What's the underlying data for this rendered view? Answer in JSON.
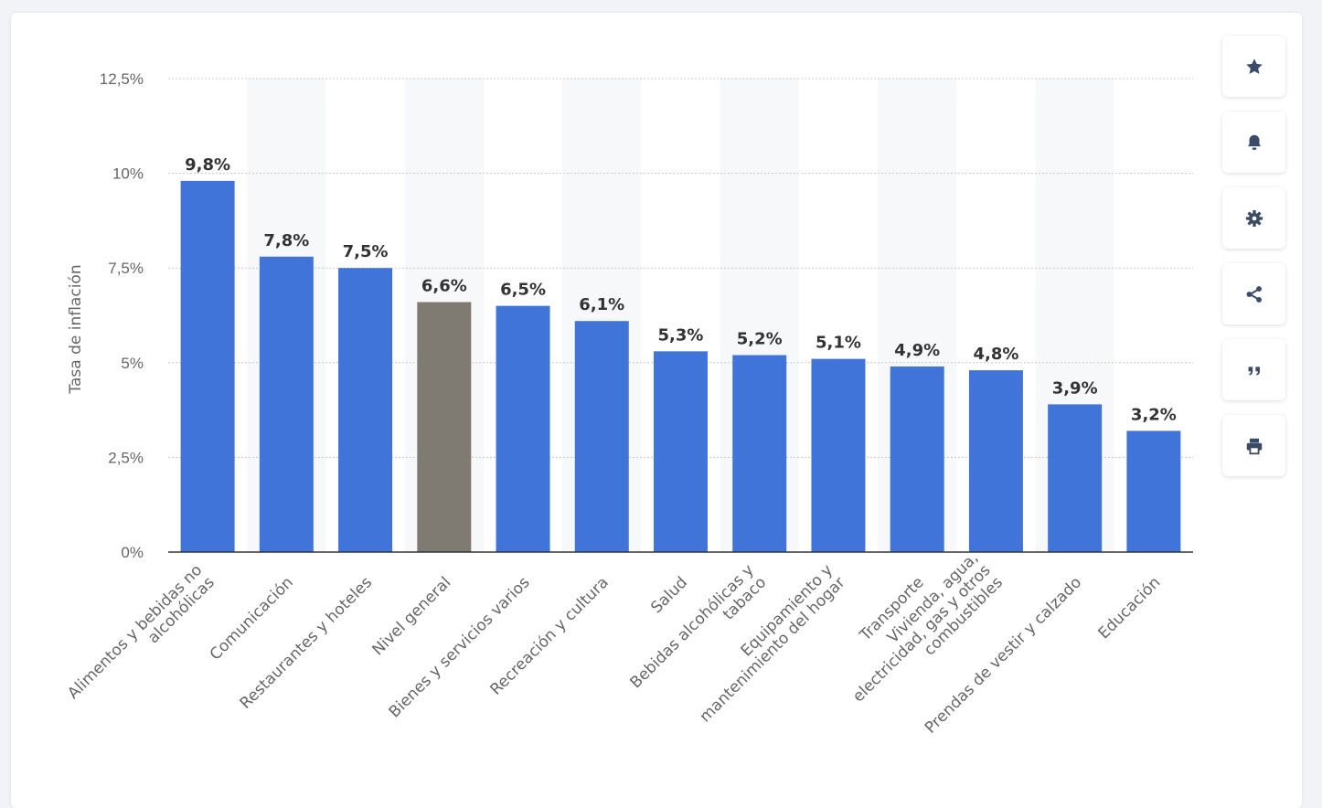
{
  "chart_data": {
    "type": "bar",
    "ylabel": "Tasa de inflación",
    "xlabel": "",
    "ylim": [
      0,
      12.5
    ],
    "yticks": [
      "0%",
      "2,5%",
      "5%",
      "7,5%",
      "10%",
      "12,5%"
    ],
    "ytick_values": [
      0,
      2.5,
      5,
      7.5,
      10,
      12.5
    ],
    "grid": true,
    "categories": [
      "Alimentos y bebidas no alcohólicas",
      "Comunicación",
      "Restaurantes y hoteles",
      "Nivel general",
      "Bienes y servicios varios",
      "Recreación y cultura",
      "Salud",
      "Bebidas alcohólicas y tabaco",
      "Equipamiento y mantenimiento del hogar",
      "Transporte",
      "Vivienda, agua, electricidad, gas y otros combustibles",
      "Prendas de vestir y calzado",
      "Educación"
    ],
    "category_lines": [
      [
        "Alimentos y bebidas no",
        "alcohólicas"
      ],
      [
        "Comunicación"
      ],
      [
        "Restaurantes y hoteles"
      ],
      [
        "Nivel general"
      ],
      [
        "Bienes y servicios varios"
      ],
      [
        "Recreación y cultura"
      ],
      [
        "Salud"
      ],
      [
        "Bebidas alcohólicas y",
        "tabaco"
      ],
      [
        "Equipamiento y",
        "mantenimiento del hogar"
      ],
      [
        "Transporte"
      ],
      [
        "Vivienda, agua,",
        "electricidad, gas y otros",
        "combustibles"
      ],
      [
        "Prendas de vestir y calzado"
      ],
      [
        "Educación"
      ]
    ],
    "values": [
      9.8,
      7.8,
      7.5,
      6.6,
      6.5,
      6.1,
      5.3,
      5.2,
      5.1,
      4.9,
      4.8,
      3.9,
      3.2
    ],
    "value_labels": [
      "9,8%",
      "7,8%",
      "7,5%",
      "6,6%",
      "6,5%",
      "6,1%",
      "5,3%",
      "5,2%",
      "5,1%",
      "4,9%",
      "4,8%",
      "3,9%",
      "3,2%"
    ],
    "colors": {
      "default": "#4174d8",
      "highlight": "#7f7b72"
    },
    "highlight_index": 3
  },
  "toolbar": {
    "buttons": [
      {
        "name": "favorite-button",
        "icon": "star-icon"
      },
      {
        "name": "notification-button",
        "icon": "bell-icon"
      },
      {
        "name": "settings-button",
        "icon": "gear-icon"
      },
      {
        "name": "share-button",
        "icon": "share-icon"
      },
      {
        "name": "cite-button",
        "icon": "quote-icon"
      },
      {
        "name": "print-button",
        "icon": "printer-icon"
      }
    ]
  }
}
